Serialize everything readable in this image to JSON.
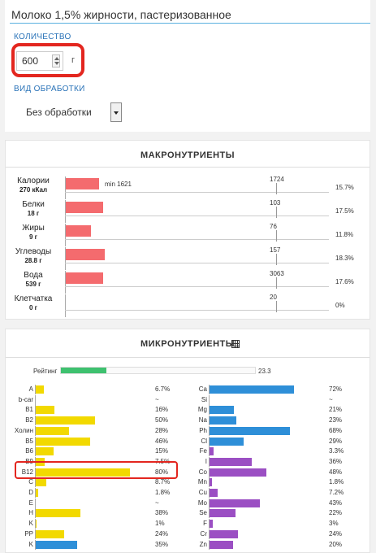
{
  "product": {
    "title": "Молоко 1,5% жирности, пастеризованное"
  },
  "quantity": {
    "label": "КОЛИЧЕСТВО",
    "value": "600",
    "unit": "г"
  },
  "processing": {
    "label": "ВИД ОБРАБОТКИ",
    "selected": "Без обработки"
  },
  "macro": {
    "title": "МАКРОНУТРИЕНТЫ",
    "min_label": "min 1621",
    "max_value": 1724,
    "rows": [
      {
        "name": "Калории",
        "amount": "270 кКал",
        "value": 270,
        "ref": "1724",
        "pct": "15.7%"
      },
      {
        "name": "Белки",
        "amount": "18 г",
        "value": 18,
        "ref": "103",
        "pct": "17.5%"
      },
      {
        "name": "Жиры",
        "amount": "9 г",
        "value": 9,
        "ref": "76",
        "pct": "11.8%"
      },
      {
        "name": "Углеводы",
        "amount": "28.8 г",
        "value": 28.8,
        "ref": "157",
        "pct": "18.3%"
      },
      {
        "name": "Вода",
        "amount": "539 г",
        "value": 539,
        "ref": "3063",
        "pct": "17.6%"
      },
      {
        "name": "Клетчатка",
        "amount": "0 г",
        "value": 0,
        "ref": "20",
        "pct": "0%"
      }
    ]
  },
  "micro": {
    "title": "МИКРОНУТРИЕНТЫ",
    "rating_label": "Рейтинг",
    "rating_value": "23.3",
    "rating_fraction": 0.233,
    "colors": {
      "vitamin": "#f2d900",
      "mineral_blue": "#2e8fd8",
      "mineral_purple": "#9b4fc3",
      "rating": "#3ec16f"
    },
    "vitamins": [
      {
        "name": "A",
        "pct": "6.7%",
        "fraction": 0.067,
        "color": "#f2d900"
      },
      {
        "name": "b-car",
        "pct": "~",
        "fraction": 0,
        "color": "#f2d900"
      },
      {
        "name": "B1",
        "pct": "16%",
        "fraction": 0.16,
        "color": "#f2d900"
      },
      {
        "name": "B2",
        "pct": "50%",
        "fraction": 0.5,
        "color": "#f2d900"
      },
      {
        "name": "Холин",
        "pct": "28%",
        "fraction": 0.28,
        "color": "#f2d900"
      },
      {
        "name": "B5",
        "pct": "46%",
        "fraction": 0.46,
        "color": "#f2d900"
      },
      {
        "name": "B6",
        "pct": "15%",
        "fraction": 0.15,
        "color": "#f2d900"
      },
      {
        "name": "B9",
        "pct": "7.5%",
        "fraction": 0.075,
        "color": "#f2d900"
      },
      {
        "name": "B12",
        "pct": "80%",
        "fraction": 0.8,
        "color": "#f2d900"
      },
      {
        "name": "C",
        "pct": "8.7%",
        "fraction": 0.087,
        "color": "#f2d900"
      },
      {
        "name": "D",
        "pct": "1.8%",
        "fraction": 0.018,
        "color": "#f2d900"
      },
      {
        "name": "E",
        "pct": "~",
        "fraction": 0,
        "color": "#f2d900"
      },
      {
        "name": "H",
        "pct": "38%",
        "fraction": 0.38,
        "color": "#f2d900"
      },
      {
        "name": "K",
        "pct": "1%",
        "fraction": 0.01,
        "color": "#f2d900"
      },
      {
        "name": "PP",
        "pct": "24%",
        "fraction": 0.24,
        "color": "#f2d900"
      },
      {
        "name": "K",
        "pct": "35%",
        "fraction": 0.35,
        "color": "#2e8fd8"
      }
    ],
    "minerals": [
      {
        "name": "Ca",
        "pct": "72%",
        "fraction": 0.72,
        "color": "#2e8fd8"
      },
      {
        "name": "Si",
        "pct": "~",
        "fraction": 0,
        "color": "#2e8fd8"
      },
      {
        "name": "Mg",
        "pct": "21%",
        "fraction": 0.21,
        "color": "#2e8fd8"
      },
      {
        "name": "Na",
        "pct": "23%",
        "fraction": 0.23,
        "color": "#2e8fd8"
      },
      {
        "name": "Ph",
        "pct": "68%",
        "fraction": 0.68,
        "color": "#2e8fd8"
      },
      {
        "name": "Cl",
        "pct": "29%",
        "fraction": 0.29,
        "color": "#2e8fd8"
      },
      {
        "name": "Fe",
        "pct": "3.3%",
        "fraction": 0.033,
        "color": "#9b4fc3"
      },
      {
        "name": "I",
        "pct": "36%",
        "fraction": 0.36,
        "color": "#9b4fc3"
      },
      {
        "name": "Co",
        "pct": "48%",
        "fraction": 0.48,
        "color": "#9b4fc3"
      },
      {
        "name": "Mn",
        "pct": "1.8%",
        "fraction": 0.018,
        "color": "#9b4fc3"
      },
      {
        "name": "Cu",
        "pct": "7.2%",
        "fraction": 0.072,
        "color": "#9b4fc3"
      },
      {
        "name": "Mo",
        "pct": "43%",
        "fraction": 0.43,
        "color": "#9b4fc3"
      },
      {
        "name": "Se",
        "pct": "22%",
        "fraction": 0.22,
        "color": "#9b4fc3"
      },
      {
        "name": "F",
        "pct": "3%",
        "fraction": 0.03,
        "color": "#9b4fc3"
      },
      {
        "name": "Cr",
        "pct": "24%",
        "fraction": 0.24,
        "color": "#9b4fc3"
      },
      {
        "name": "Zn",
        "pct": "20%",
        "fraction": 0.2,
        "color": "#9b4fc3"
      }
    ]
  }
}
